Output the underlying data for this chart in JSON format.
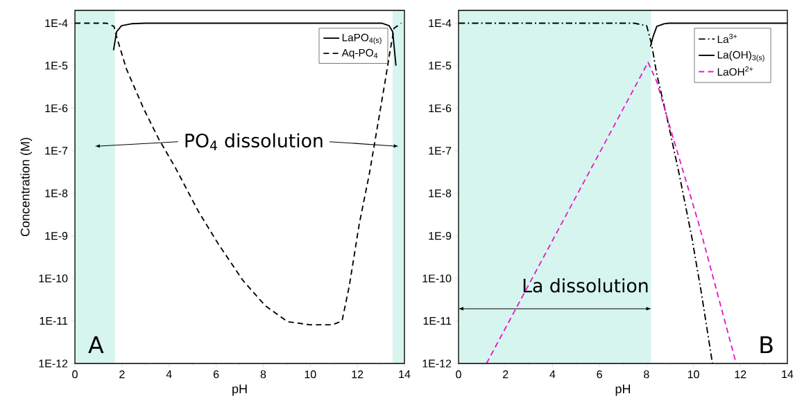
{
  "chart_data": [
    {
      "type": "line",
      "xlabel": "pH",
      "ylabel": "Concentration (M)",
      "log": "y",
      "legend": "top right",
      "xlim": [
        0,
        14
      ],
      "xticks": [
        0,
        2,
        4,
        6,
        8,
        10,
        12,
        14
      ],
      "ylim": [
        1e-12,
        0.0002
      ],
      "yticks": [
        {
          "value": 1e-12,
          "label": "1E-12"
        },
        {
          "value": 1e-11,
          "label": "1E-11"
        },
        {
          "value": 1e-10,
          "label": "1E-10"
        },
        {
          "value": 1e-09,
          "label": "1E-9"
        },
        {
          "value": 1e-08,
          "label": "1E-8"
        },
        {
          "value": 1e-07,
          "label": "1E-7"
        },
        {
          "value": 1e-06,
          "label": "1E-6"
        },
        {
          "value": 1e-05,
          "label": "1E-5"
        },
        {
          "value": 0.0001,
          "label": "1E-4"
        }
      ],
      "series": [
        {
          "name": "LaPO$_{4(s)}$",
          "color": "#000000",
          "line_style": "solid",
          "x": [
            1.64,
            1.77,
            1.98,
            2.4,
            3.0,
            8.0,
            13.03,
            13.35,
            13.5,
            13.64
          ],
          "values": [
            2.3e-05,
            6.3e-05,
            8.7e-05,
            9.7e-05,
            0.0001,
            0.0001,
            0.0001,
            8.7e-05,
            6.3e-05,
            1e-05
          ]
        },
        {
          "name": "Aq-PO$_{4}$",
          "color": "#000000",
          "line_style": "dashed",
          "x": [
            0,
            1.35,
            1.66,
            1.77,
            2.19,
            2.93,
            3.56,
            4.29,
            5.24,
            6.08,
            7.14,
            8.08,
            9.03,
            9.98,
            10.93,
            11.35,
            11.66,
            12.08,
            12.51,
            12.82,
            13.14,
            13.4,
            13.56,
            13.87
          ],
          "values": [
            0.0001,
            0.0001,
            8.4e-05,
            4.8e-05,
            8.3e-06,
            9.5e-07,
            1.9e-07,
            3.8e-08,
            3.8e-09,
            6.6e-10,
            8.9e-11,
            2.3e-11,
            9.6e-12,
            8.1e-12,
            8.1e-12,
            1e-11,
            6.8e-11,
            1.9e-09,
            2.9e-08,
            2.9e-07,
            3.2e-06,
            2.4e-05,
            7.6e-05,
            0.0001
          ]
        }
      ],
      "bands": [
        {
          "axis": "x",
          "from": 0,
          "to": 1.7,
          "color": "#d6f5ef",
          "label": "PO$_{4}$ dissolution"
        },
        {
          "axis": "x",
          "from": 13.5,
          "to": 14,
          "color": "#d6f5ef"
        }
      ],
      "annotations": [
        "A"
      ]
    },
    {
      "type": "line",
      "xlabel": "pH",
      "log": "y",
      "legend": "top right",
      "xlim": [
        0,
        14
      ],
      "xticks": [
        0,
        2,
        4,
        6,
        8,
        10,
        12,
        14
      ],
      "ylim": [
        1e-12,
        0.0002
      ],
      "yticks": [
        {
          "value": 1e-12,
          "label": "1E-12"
        },
        {
          "value": 1e-11,
          "label": "1E-11"
        },
        {
          "value": 1e-10,
          "label": "1E-10"
        },
        {
          "value": 1e-09,
          "label": "1E-9"
        },
        {
          "value": 1e-08,
          "label": "1E-8"
        },
        {
          "value": 1e-07,
          "label": "1E-7"
        },
        {
          "value": 1e-06,
          "label": "1E-6"
        },
        {
          "value": 1e-05,
          "label": "1E-5"
        },
        {
          "value": 0.0001,
          "label": "1E-4"
        }
      ],
      "series": [
        {
          "name": "La$^{3+}$",
          "color": "#000000",
          "line_style": "dashdot",
          "x": [
            0,
            7.48,
            8.01,
            8.22,
            8.44,
            8.86,
            9.39,
            9.92,
            10.34,
            10.81
          ],
          "values": [
            0.0001,
            0.0001,
            8.7e-05,
            3.2e-05,
            6.3e-06,
            6.5e-07,
            2.9e-08,
            1e-09,
            4.5e-11,
            1e-12
          ]
        },
        {
          "name": "La(OH)$_{3(s)}$",
          "color": "#000000",
          "line_style": "solid",
          "x": [
            8.17,
            8.28,
            8.44,
            8.75,
            8.96,
            14
          ],
          "values": [
            2.8e-05,
            4.8e-05,
            8.4e-05,
            9.7e-05,
            0.0001,
            0.0001
          ]
        },
        {
          "name": "LaOH$^{2+}$",
          "color": "#e619c8",
          "line_style": "dashed",
          "x": [
            1.19,
            8.07,
            8.44,
            8.96,
            10.23,
            11.82
          ],
          "values": [
            1e-12,
            1.2e-05,
            4.2e-06,
            4.3e-07,
            1.9e-09,
            1e-12
          ]
        }
      ],
      "bands": [
        {
          "axis": "x",
          "from": 0,
          "to": 8.2,
          "color": "#d6f5ef",
          "label": "La dissolution"
        }
      ],
      "annotations": [
        "B"
      ]
    }
  ]
}
